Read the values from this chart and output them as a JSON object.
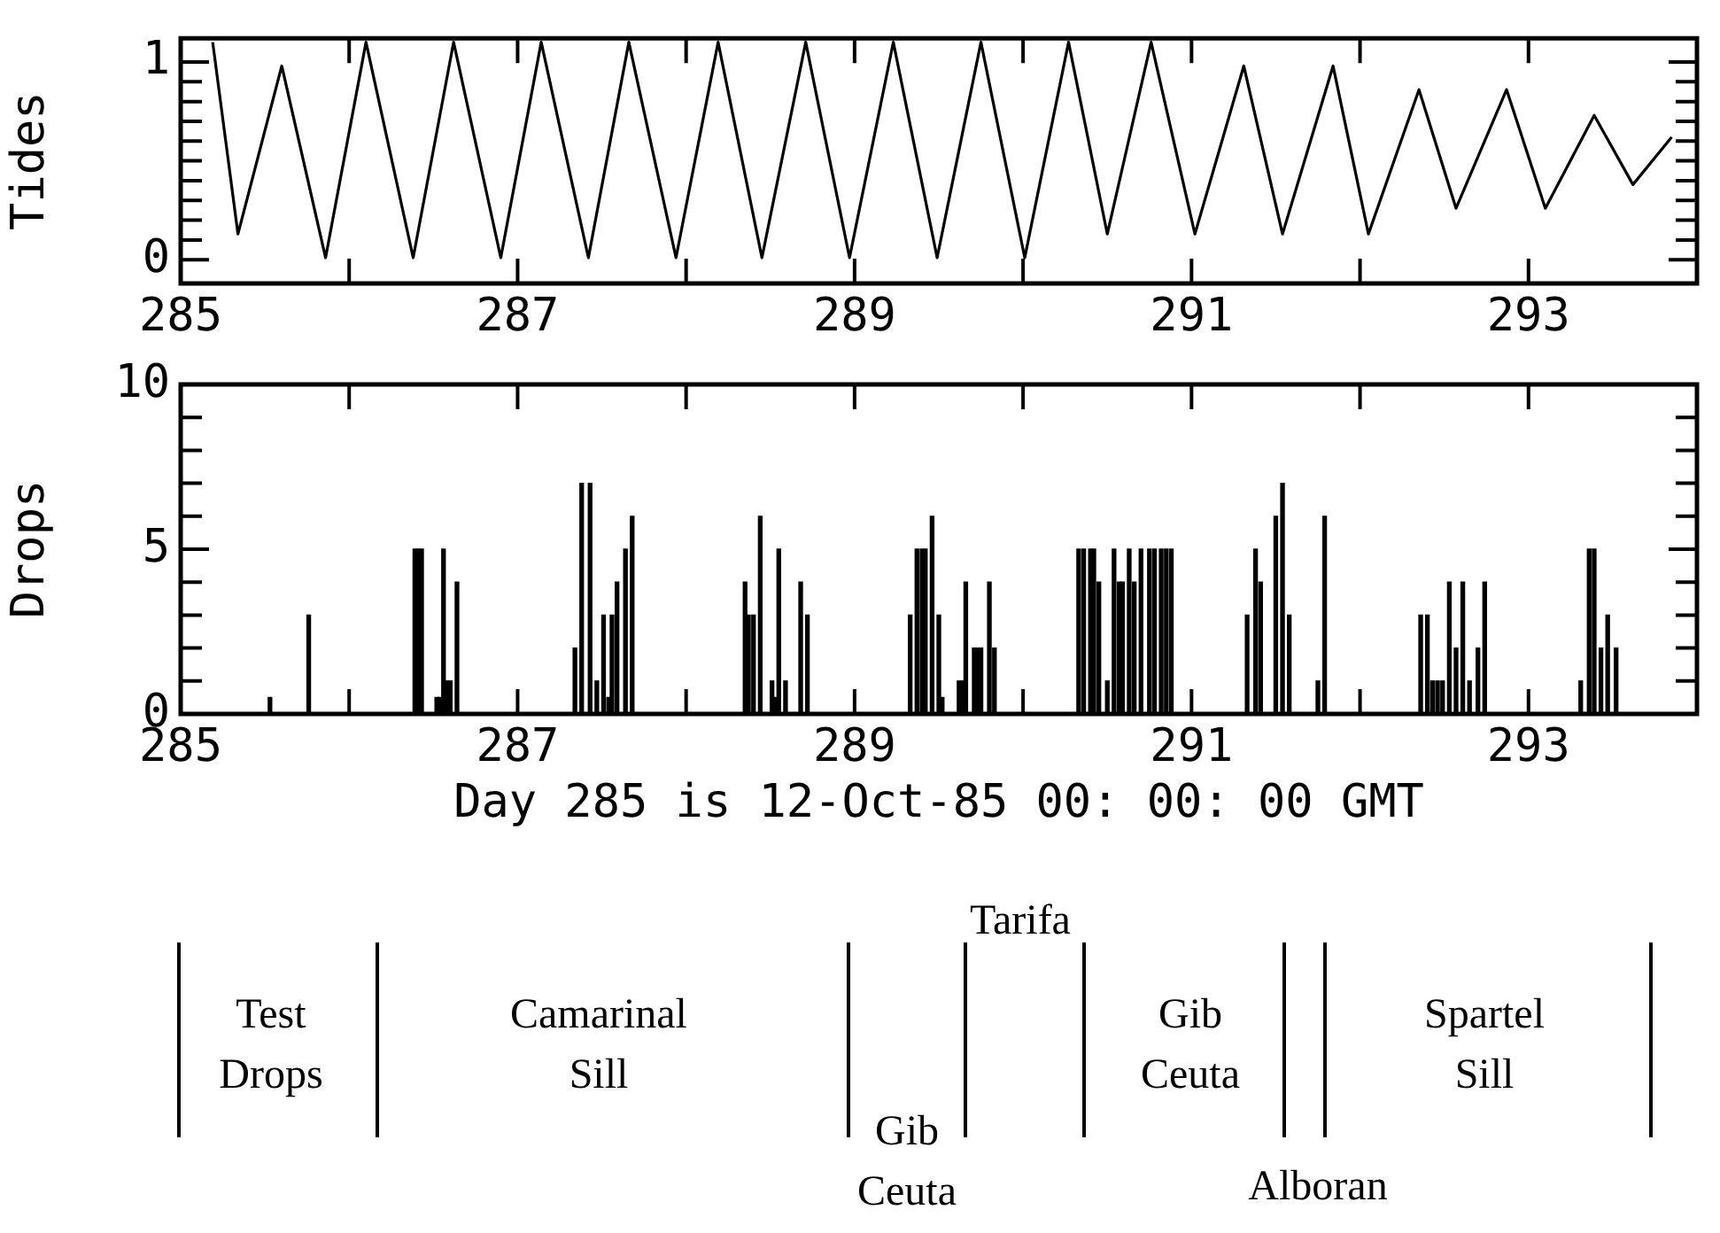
{
  "chart_data": [
    {
      "type": "line",
      "ylabel": "Tides",
      "color": "#000000",
      "grid": false,
      "x": [
        285.19,
        285.34,
        285.6,
        285.86,
        286.1,
        286.38,
        286.62,
        286.9,
        287.14,
        287.42,
        287.66,
        287.94,
        288.19,
        288.45,
        288.71,
        288.97,
        289.23,
        289.49,
        289.75,
        290.01,
        290.27,
        290.5,
        290.76,
        291.02,
        291.31,
        291.54,
        291.84,
        292.05,
        292.35,
        292.57,
        292.87,
        293.1,
        293.39,
        293.62,
        293.85
      ],
      "values": [
        1.1,
        0.13,
        0.98,
        0.01,
        1.1,
        0.01,
        1.1,
        0.01,
        1.1,
        0.01,
        1.1,
        0.01,
        1.1,
        0.01,
        1.1,
        0.01,
        1.1,
        0.01,
        1.1,
        0.01,
        1.1,
        0.13,
        1.1,
        0.13,
        0.98,
        0.13,
        0.98,
        0.13,
        0.86,
        0.26,
        0.86,
        0.26,
        0.73,
        0.38,
        0.62
      ],
      "xlim": [
        285,
        294
      ],
      "xticks": [
        285,
        {
          "value": 286,
          "label": null
        },
        287,
        {
          "value": 288,
          "label": null
        },
        289,
        {
          "value": 290,
          "label": null
        },
        291,
        {
          "value": 292,
          "label": null
        },
        293,
        {
          "value": 294,
          "label": null
        }
      ],
      "ylim": [
        -0.12,
        1.12
      ],
      "yticks": [
        0,
        {
          "value": 0.1,
          "label": null
        },
        {
          "value": 0.2,
          "label": null
        },
        {
          "value": 0.3,
          "label": null
        },
        {
          "value": 0.4,
          "label": null
        },
        {
          "value": 0.5,
          "label": null
        },
        {
          "value": 0.6,
          "label": null
        },
        {
          "value": 0.7,
          "label": null
        },
        {
          "value": 0.8,
          "label": null
        },
        {
          "value": 0.9,
          "label": null
        },
        1
      ]
    },
    {
      "type": "bar",
      "ylabel": "Drops",
      "xlabel": "Day 285 is 12-Oct-85 00: 00: 00 GMT",
      "color": "#000000",
      "grid": false,
      "x": [
        285.53,
        285.76,
        286.39,
        286.41,
        286.43,
        286.52,
        286.54,
        286.56,
        286.58,
        286.6,
        286.64,
        287.34,
        287.38,
        287.43,
        287.47,
        287.51,
        287.54,
        287.56,
        287.59,
        287.64,
        287.68,
        288.35,
        288.37,
        288.4,
        288.44,
        288.51,
        288.53,
        288.55,
        288.59,
        288.68,
        288.72,
        289.33,
        289.37,
        289.4,
        289.42,
        289.46,
        289.5,
        289.52,
        289.62,
        289.64,
        289.66,
        289.71,
        289.73,
        289.75,
        289.8,
        289.83,
        290.33,
        290.36,
        290.4,
        290.42,
        290.45,
        290.5,
        290.54,
        290.57,
        290.59,
        290.63,
        290.66,
        290.7,
        290.75,
        290.78,
        290.82,
        290.85,
        290.88,
        291.33,
        291.38,
        291.41,
        291.5,
        291.54,
        291.58,
        291.75,
        291.79,
        292.36,
        292.4,
        292.43,
        292.46,
        292.49,
        292.53,
        292.57,
        292.61,
        292.65,
        292.7,
        292.74,
        293.31,
        293.36,
        293.39,
        293.43,
        293.47,
        293.52
      ],
      "values": [
        0.5,
        3,
        5,
        5,
        5,
        0.5,
        0.5,
        5,
        1,
        1,
        4,
        2,
        7,
        7,
        1,
        3,
        0.5,
        3,
        4,
        5,
        6,
        4,
        3,
        3,
        6,
        1,
        0.5,
        5,
        1,
        4,
        3,
        3,
        5,
        5,
        5,
        6,
        3,
        0.5,
        1,
        1,
        4,
        2,
        2,
        2,
        4,
        2,
        5,
        5,
        5,
        5,
        4,
        1,
        5,
        4,
        4,
        5,
        4,
        5,
        5,
        5,
        5,
        5,
        5,
        3,
        5,
        4,
        6,
        7,
        3,
        1,
        6,
        3,
        3,
        1,
        1,
        1,
        4,
        2,
        4,
        1,
        2,
        4,
        1,
        5,
        5,
        2,
        3,
        2
      ],
      "xlim": [
        285,
        294
      ],
      "xticks": [
        285,
        {
          "value": 286,
          "label": null
        },
        287,
        {
          "value": 288,
          "label": null
        },
        289,
        {
          "value": 290,
          "label": null
        },
        291,
        {
          "value": 292,
          "label": null
        },
        293,
        {
          "value": 294,
          "label": null
        }
      ],
      "ylim": [
        0,
        10
      ],
      "yticks": [
        0,
        {
          "value": 1,
          "label": null
        },
        {
          "value": 2,
          "label": null
        },
        {
          "value": 3,
          "label": null
        },
        {
          "value": 4,
          "label": null
        },
        5,
        {
          "value": 6,
          "label": null
        },
        {
          "value": 7,
          "label": null
        },
        {
          "value": 8,
          "label": null
        },
        {
          "value": 9,
          "label": null
        },
        10
      ],
      "annotations": [
        "Test Drops",
        "Camarinal Sill",
        "Gib Ceuta",
        "Tarifa",
        "Gib Ceuta",
        "Alboran",
        "Spartel Sill"
      ]
    }
  ]
}
